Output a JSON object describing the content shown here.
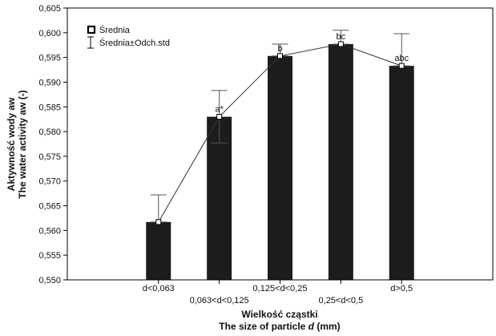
{
  "chart_data": {
    "type": "bar",
    "categories": [
      "d<0,063",
      "0,063<d<0,125",
      "0,125<d<0,25",
      "0,25<d<0,5",
      "d>0,5"
    ],
    "series": [
      {
        "name": "Średnia",
        "values": [
          0.5617,
          0.583,
          0.5953,
          0.5977,
          0.5933
        ],
        "sd_lower": [
          0.5617,
          0.5777,
          0.5953,
          0.5977,
          0.5933
        ],
        "sd_upper": [
          0.5672,
          0.5883,
          0.5977,
          0.6005,
          0.5998
        ]
      }
    ],
    "error_series_name": "Średnia±Odch.std",
    "bar_labels": [
      "",
      "a*",
      "b",
      "bc",
      "abc"
    ],
    "ylim": [
      0.55,
      0.605
    ],
    "yticks": [
      "0,605",
      "0,600",
      "0,595",
      "0,590",
      "0,585",
      "0,580",
      "0,575",
      "0,570",
      "0,565",
      "0,560",
      "0,555",
      "0,550"
    ],
    "ylabel_line1": "Aktywność wody aw",
    "ylabel_line2": "The water activity aw (-)",
    "xlabel_line1": "Wielkość cząstki",
    "xlabel_line2_prefix": "The size of particle ",
    "xlabel_line2_var": "d",
    "xlabel_line2_suffix": " (mm)",
    "legend_position": "top-left",
    "grid": false,
    "colors": {
      "bar": "#1c1c1c",
      "line": "#333333",
      "marker_fill": "#ffffff"
    }
  }
}
